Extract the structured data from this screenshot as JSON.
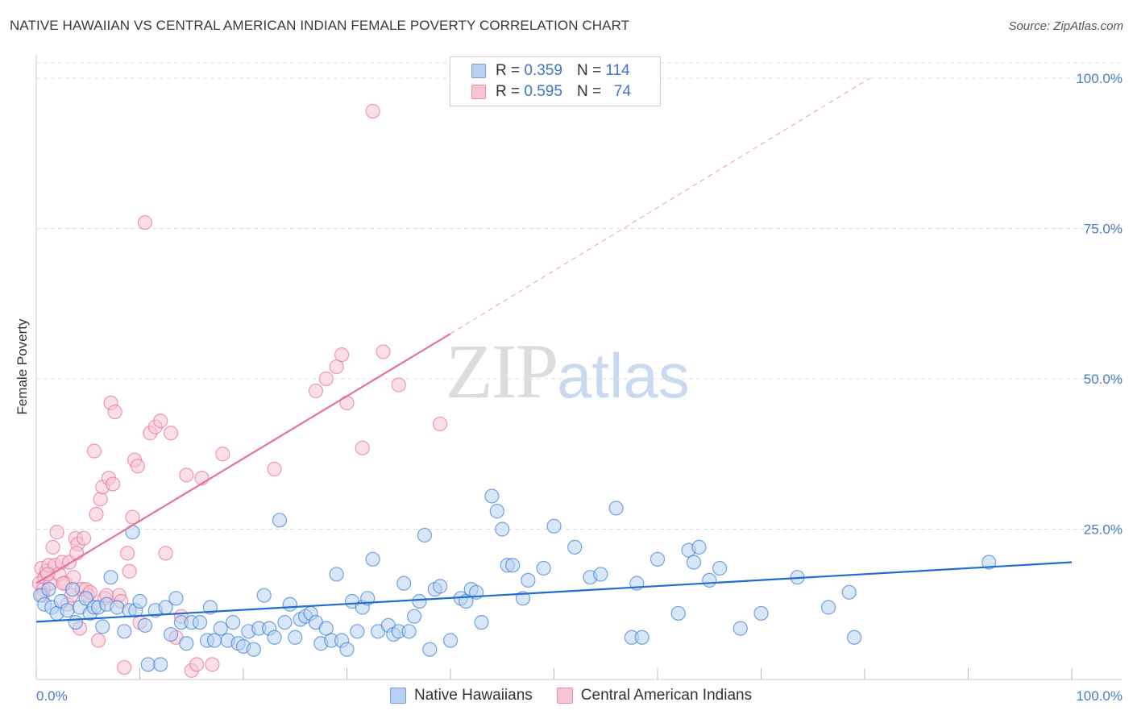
{
  "header": {
    "title": "NATIVE HAWAIIAN VS CENTRAL AMERICAN INDIAN FEMALE POVERTY CORRELATION CHART",
    "source": "Source: ZipAtlas.com"
  },
  "watermark": {
    "zip": "ZIP",
    "atlas": "atlas"
  },
  "colors": {
    "blue": "#1f6dd1",
    "blue_fill": "#b8d1f3",
    "pink": "#e8719a",
    "pink_fill": "#f7c4d4",
    "tick": "#4a7cc4",
    "grid": "#dddddd"
  },
  "legend": {
    "rows": [
      {
        "r_label": "R =",
        "r_value": "0.359",
        "n_label": "N =",
        "n_value": "114"
      },
      {
        "r_label": "R =",
        "r_value": "0.595",
        "n_label": "N =",
        "n_value": "74"
      }
    ],
    "bottom": [
      "Native Hawaiians",
      "Central American Indians"
    ]
  },
  "chart_data": {
    "type": "scatter",
    "title": "NATIVE HAWAIIAN VS CENTRAL AMERICAN INDIAN FEMALE POVERTY CORRELATION CHART",
    "xlabel": "",
    "ylabel": "Female Poverty",
    "xlim": [
      0,
      100
    ],
    "ylim": [
      0,
      100
    ],
    "x_tick_labels": [
      "0.0%",
      "100.0%"
    ],
    "y_tick_labels": [
      "25.0%",
      "50.0%",
      "75.0%",
      "100.0%"
    ],
    "y_ticks": [
      25,
      50,
      75,
      100
    ],
    "grid": true,
    "legend_position": "top-center",
    "series": [
      {
        "name": "Native Hawaiians",
        "color": "#1f6dd1",
        "R": 0.359,
        "N": 114,
        "trend": {
          "x0": 0,
          "y0": 9.6,
          "x1": 100,
          "y1": 19.5
        },
        "points": [
          [
            0.4,
            14
          ],
          [
            0.8,
            12.5
          ],
          [
            1.2,
            15
          ],
          [
            1.5,
            12
          ],
          [
            2.0,
            11
          ],
          [
            2.4,
            13
          ],
          [
            3.0,
            11.5
          ],
          [
            3.5,
            15
          ],
          [
            3.8,
            9.5
          ],
          [
            4.2,
            12
          ],
          [
            4.8,
            13.5
          ],
          [
            5.2,
            11
          ],
          [
            5.6,
            12
          ],
          [
            6.0,
            12
          ],
          [
            6.4,
            8.8
          ],
          [
            6.8,
            12.5
          ],
          [
            7.2,
            17
          ],
          [
            7.8,
            12
          ],
          [
            8.5,
            8
          ],
          [
            9.0,
            11.5
          ],
          [
            9.3,
            24.5
          ],
          [
            9.6,
            11.5
          ],
          [
            10.0,
            13
          ],
          [
            10.5,
            9
          ],
          [
            10.8,
            2.5
          ],
          [
            11.5,
            11.5
          ],
          [
            12.0,
            2.5
          ],
          [
            12.5,
            12
          ],
          [
            13.0,
            7.5
          ],
          [
            13.5,
            13.5
          ],
          [
            14.0,
            9.5
          ],
          [
            14.5,
            6
          ],
          [
            15.0,
            9.5
          ],
          [
            15.8,
            9.5
          ],
          [
            16.5,
            6.5
          ],
          [
            16.8,
            12
          ],
          [
            17.2,
            6.5
          ],
          [
            17.8,
            8.5
          ],
          [
            18.5,
            6.5
          ],
          [
            19.0,
            9.5
          ],
          [
            19.5,
            6
          ],
          [
            20.0,
            5.5
          ],
          [
            20.5,
            8
          ],
          [
            21.0,
            5
          ],
          [
            21.5,
            8.5
          ],
          [
            22.0,
            14
          ],
          [
            22.5,
            8.5
          ],
          [
            23.0,
            7
          ],
          [
            23.5,
            26.5
          ],
          [
            24.0,
            9.5
          ],
          [
            24.5,
            12.5
          ],
          [
            25.0,
            7
          ],
          [
            25.5,
            10
          ],
          [
            26.0,
            10.5
          ],
          [
            26.5,
            11
          ],
          [
            27.0,
            9.5
          ],
          [
            27.5,
            6
          ],
          [
            28.0,
            8.5
          ],
          [
            28.5,
            6.5
          ],
          [
            29.0,
            17.5
          ],
          [
            29.5,
            6.5
          ],
          [
            30.0,
            5
          ],
          [
            30.5,
            13
          ],
          [
            31.0,
            8
          ],
          [
            31.5,
            12
          ],
          [
            32.0,
            13.5
          ],
          [
            32.5,
            20
          ],
          [
            33.0,
            8
          ],
          [
            34.0,
            9
          ],
          [
            34.5,
            7.5
          ],
          [
            35.0,
            8
          ],
          [
            35.5,
            16
          ],
          [
            36.0,
            8
          ],
          [
            36.5,
            10.5
          ],
          [
            37.0,
            13
          ],
          [
            37.5,
            24
          ],
          [
            38.0,
            5
          ],
          [
            38.5,
            15
          ],
          [
            39.0,
            15.5
          ],
          [
            40.0,
            6.5
          ],
          [
            41.0,
            13.5
          ],
          [
            41.5,
            13
          ],
          [
            42.0,
            15
          ],
          [
            42.5,
            14.5
          ],
          [
            43.0,
            9.5
          ],
          [
            44.0,
            30.5
          ],
          [
            44.5,
            28
          ],
          [
            45.0,
            25
          ],
          [
            45.5,
            19
          ],
          [
            46.0,
            19
          ],
          [
            47.0,
            13.5
          ],
          [
            47.5,
            16.5
          ],
          [
            49.0,
            18.5
          ],
          [
            50.0,
            25.5
          ],
          [
            52.0,
            22
          ],
          [
            53.5,
            17
          ],
          [
            54.5,
            17.5
          ],
          [
            56.0,
            28.5
          ],
          [
            57.5,
            7
          ],
          [
            58.0,
            16
          ],
          [
            58.5,
            7
          ],
          [
            60.0,
            20
          ],
          [
            62.0,
            11
          ],
          [
            63.0,
            21.5
          ],
          [
            63.5,
            19.5
          ],
          [
            64.0,
            22
          ],
          [
            65.0,
            16.5
          ],
          [
            66.0,
            18.5
          ],
          [
            68.0,
            8.5
          ],
          [
            70.0,
            11
          ],
          [
            73.5,
            17
          ],
          [
            76.5,
            12
          ],
          [
            78.5,
            14.5
          ],
          [
            79.0,
            7
          ],
          [
            92.0,
            19.5
          ]
        ]
      },
      {
        "name": "Central American Indians",
        "color": "#e8719a",
        "R": 0.595,
        "N": 74,
        "trend": {
          "x0": 0,
          "y0": 16,
          "x1": 40,
          "y1": 57.5,
          "dash_x1": 80.5,
          "dash_y1": 100
        },
        "points": [
          [
            0.3,
            16
          ],
          [
            0.5,
            18.5
          ],
          [
            0.7,
            15
          ],
          [
            0.8,
            17
          ],
          [
            1.0,
            18
          ],
          [
            1.2,
            19
          ],
          [
            1.4,
            16
          ],
          [
            1.6,
            22
          ],
          [
            1.8,
            19
          ],
          [
            2.0,
            24.5
          ],
          [
            2.2,
            17.5
          ],
          [
            2.5,
            19.5
          ],
          [
            2.8,
            16
          ],
          [
            3.0,
            12.5
          ],
          [
            3.2,
            19.5
          ],
          [
            3.4,
            14
          ],
          [
            3.6,
            17
          ],
          [
            3.8,
            23.5
          ],
          [
            4.0,
            22.5
          ],
          [
            4.2,
            8.5
          ],
          [
            4.4,
            15
          ],
          [
            4.6,
            23.5
          ],
          [
            4.8,
            15
          ],
          [
            5.0,
            14
          ],
          [
            5.2,
            14.5
          ],
          [
            5.6,
            38
          ],
          [
            5.8,
            27.5
          ],
          [
            6.0,
            6.5
          ],
          [
            6.2,
            30
          ],
          [
            6.4,
            32
          ],
          [
            6.6,
            13.5
          ],
          [
            6.8,
            14
          ],
          [
            7.0,
            33.5
          ],
          [
            7.2,
            46
          ],
          [
            7.4,
            32.5
          ],
          [
            7.6,
            44.5
          ],
          [
            8.0,
            14
          ],
          [
            8.2,
            13
          ],
          [
            8.5,
            2
          ],
          [
            8.8,
            21
          ],
          [
            9.0,
            18
          ],
          [
            9.3,
            27
          ],
          [
            9.5,
            36.5
          ],
          [
            9.8,
            35.5
          ],
          [
            10.0,
            9.5
          ],
          [
            10.5,
            76
          ],
          [
            11.0,
            41
          ],
          [
            11.5,
            42
          ],
          [
            12.0,
            43
          ],
          [
            12.5,
            21
          ],
          [
            13.0,
            41
          ],
          [
            13.5,
            7
          ],
          [
            14.0,
            10.5
          ],
          [
            14.5,
            34
          ],
          [
            15.0,
            1.5
          ],
          [
            15.5,
            2.5
          ],
          [
            16.0,
            33.5
          ],
          [
            17.0,
            2.5
          ],
          [
            18.0,
            37.5
          ],
          [
            23.0,
            35
          ],
          [
            27.0,
            48
          ],
          [
            28.0,
            50
          ],
          [
            29.0,
            52
          ],
          [
            29.5,
            54
          ],
          [
            30.0,
            46
          ],
          [
            31.5,
            38.5
          ],
          [
            32.5,
            94.5
          ],
          [
            33.5,
            54.5
          ],
          [
            35.0,
            49
          ],
          [
            39.0,
            42.5
          ],
          [
            0.6,
            14
          ],
          [
            1.1,
            17.5
          ],
          [
            2.6,
            16
          ],
          [
            3.9,
            21
          ]
        ]
      }
    ]
  }
}
